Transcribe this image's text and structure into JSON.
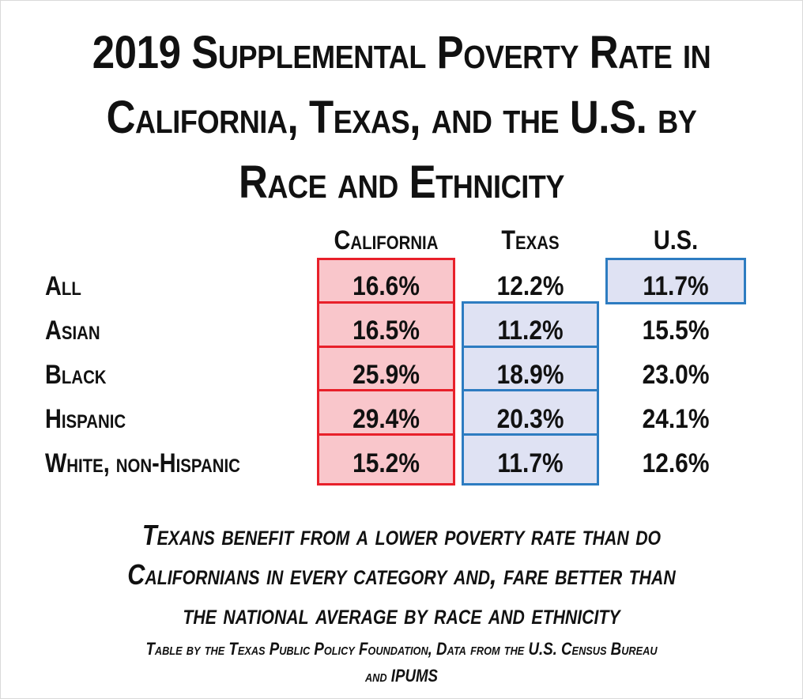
{
  "title_lines": [
    "2019 Supplemental Poverty Rate in",
    "California, Texas, and the U.S. by",
    "Race and Ethnicity"
  ],
  "chart_data": {
    "type": "table",
    "title": "2019 Supplemental Poverty Rate in California, Texas, and the U.S. by Race and Ethnicity",
    "columns": [
      "California",
      "Texas",
      "U.S."
    ],
    "rows": [
      {
        "label": "All",
        "values": [
          "16.6%",
          "12.2%",
          "11.7%"
        ]
      },
      {
        "label": "Asian",
        "values": [
          "16.5%",
          "11.2%",
          "15.5%"
        ]
      },
      {
        "label": "Black",
        "values": [
          "25.9%",
          "18.9%",
          "23.0%"
        ]
      },
      {
        "label": "Hispanic",
        "values": [
          "29.4%",
          "20.3%",
          "24.1%"
        ]
      },
      {
        "label": "White, non-Hispanic",
        "values": [
          "15.2%",
          "11.7%",
          "12.6%"
        ]
      }
    ],
    "highlight_colors": {
      "california_fill": "#f9c6cb",
      "california_border": "#e8202a",
      "lower_rate_fill": "#dfe2f3",
      "lower_rate_border": "#2d7cc1"
    }
  },
  "note_lines": [
    "Texans benefit from a lower poverty rate than do",
    "Californians in every category and, fare better than",
    "the national average by race and ethnicity"
  ],
  "source_lines": [
    "Table by the Texas Public Policy Foundation, Data from the U.S. Census Bureau",
    "and IPUMS"
  ]
}
